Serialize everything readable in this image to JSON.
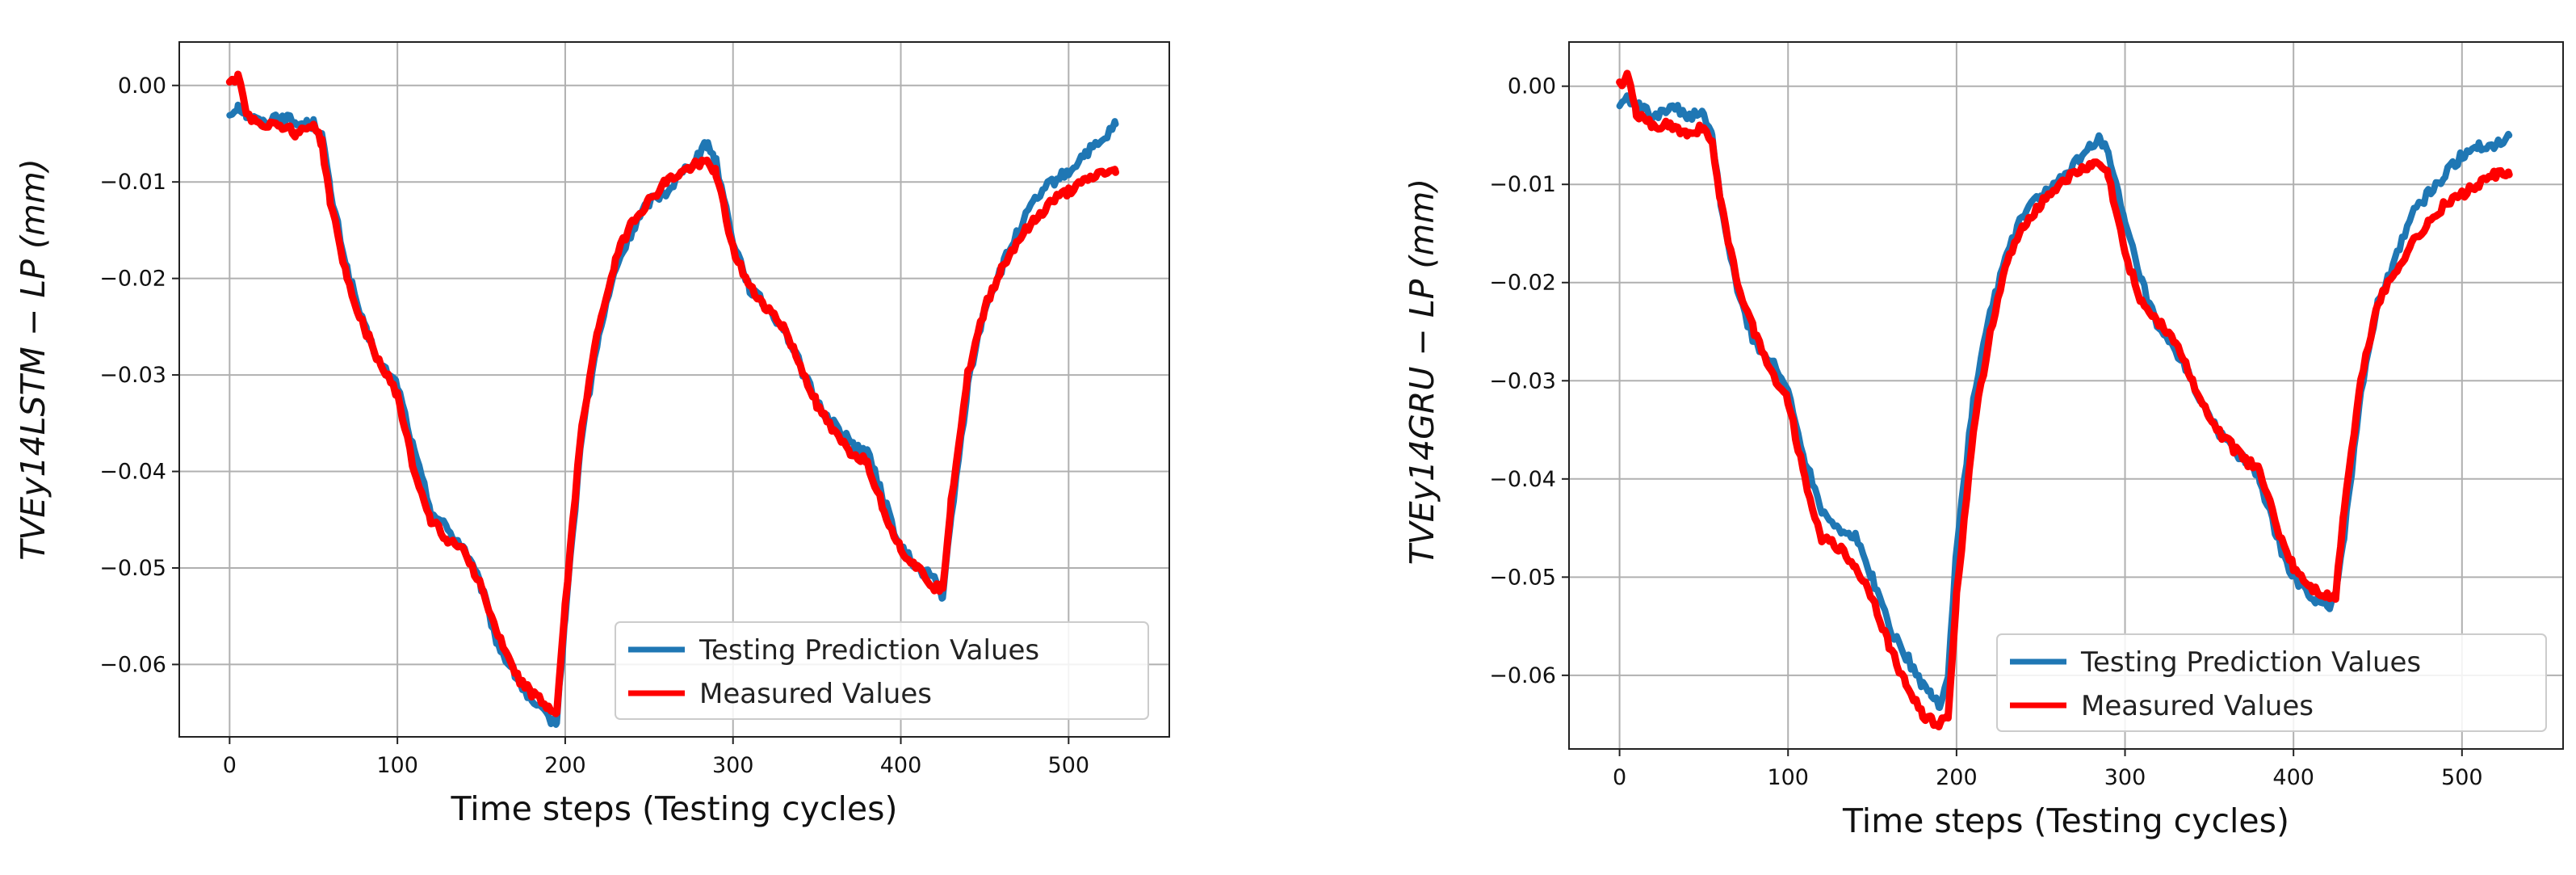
{
  "chart_data": [
    {
      "type": "line",
      "ylabel": "TVEy14LSTM − LP (mm)",
      "xlabel": "Time steps (Testing cycles)",
      "xlim": [
        -30,
        560
      ],
      "ylim": [
        -0.0675,
        0.0045
      ],
      "x_ticks": [
        0,
        100,
        200,
        300,
        400,
        500
      ],
      "x_tick_labels": [
        "0",
        "100",
        "200",
        "300",
        "400",
        "500"
      ],
      "y_ticks": [
        0.0,
        -0.01,
        -0.02,
        -0.03,
        -0.04,
        -0.05,
        -0.06
      ],
      "y_tick_labels": [
        "0.00",
        "−0.01",
        "−0.02",
        "−0.03",
        "−0.04",
        "−0.05",
        "−0.06"
      ],
      "grid": true,
      "legend_position": "lower-right",
      "series": [
        {
          "name": "Testing Prediction Values",
          "color": "#1f77b4",
          "x": [
            0,
            5,
            10,
            20,
            30,
            40,
            50,
            55,
            60,
            70,
            80,
            90,
            100,
            110,
            120,
            130,
            140,
            150,
            160,
            170,
            180,
            190,
            195,
            200,
            210,
            220,
            230,
            240,
            250,
            260,
            270,
            280,
            285,
            290,
            300,
            310,
            320,
            330,
            340,
            350,
            360,
            370,
            380,
            390,
            400,
            410,
            420,
            425,
            430,
            440,
            450,
            460,
            470,
            480,
            490,
            500,
            510,
            520,
            528
          ],
          "values": [
            -0.003,
            -0.002,
            -0.003,
            -0.004,
            -0.003,
            -0.004,
            -0.004,
            -0.005,
            -0.011,
            -0.019,
            -0.025,
            -0.029,
            -0.031,
            -0.038,
            -0.044,
            -0.046,
            -0.048,
            -0.052,
            -0.058,
            -0.061,
            -0.064,
            -0.0655,
            -0.066,
            -0.055,
            -0.036,
            -0.026,
            -0.019,
            -0.015,
            -0.012,
            -0.011,
            -0.009,
            -0.007,
            -0.006,
            -0.008,
            -0.016,
            -0.021,
            -0.023,
            -0.025,
            -0.029,
            -0.033,
            -0.035,
            -0.037,
            -0.038,
            -0.043,
            -0.048,
            -0.05,
            -0.051,
            -0.053,
            -0.045,
            -0.031,
            -0.023,
            -0.019,
            -0.015,
            -0.012,
            -0.01,
            -0.009,
            -0.007,
            -0.006,
            -0.004
          ]
        },
        {
          "name": "Measured Values",
          "color": "#ff0000",
          "x": [
            0,
            5,
            10,
            20,
            30,
            40,
            50,
            55,
            60,
            70,
            80,
            90,
            100,
            110,
            120,
            130,
            140,
            150,
            160,
            170,
            180,
            190,
            195,
            200,
            210,
            220,
            230,
            240,
            250,
            260,
            270,
            280,
            285,
            290,
            300,
            310,
            320,
            330,
            340,
            350,
            360,
            370,
            380,
            390,
            400,
            410,
            420,
            425,
            430,
            440,
            450,
            460,
            470,
            480,
            490,
            500,
            510,
            520,
            528
          ],
          "values": [
            0.0,
            0.001,
            -0.003,
            -0.004,
            -0.004,
            -0.005,
            -0.004,
            -0.006,
            -0.012,
            -0.02,
            -0.025,
            -0.029,
            -0.032,
            -0.04,
            -0.045,
            -0.047,
            -0.048,
            -0.052,
            -0.057,
            -0.061,
            -0.063,
            -0.0645,
            -0.065,
            -0.054,
            -0.035,
            -0.025,
            -0.018,
            -0.014,
            -0.012,
            -0.01,
            -0.009,
            -0.008,
            -0.008,
            -0.009,
            -0.017,
            -0.021,
            -0.023,
            -0.025,
            -0.029,
            -0.033,
            -0.036,
            -0.038,
            -0.039,
            -0.044,
            -0.048,
            -0.05,
            -0.052,
            -0.052,
            -0.043,
            -0.03,
            -0.023,
            -0.019,
            -0.016,
            -0.014,
            -0.012,
            -0.011,
            -0.01,
            -0.009,
            -0.009
          ]
        }
      ]
    },
    {
      "type": "line",
      "ylabel": "TVEy14GRU − LP (mm)",
      "xlabel": "Time steps (Testing cycles)",
      "xlim": [
        -30,
        560
      ],
      "ylim": [
        -0.0675,
        0.0045
      ],
      "x_ticks": [
        0,
        100,
        200,
        300,
        400,
        500
      ],
      "x_tick_labels": [
        "0",
        "100",
        "200",
        "300",
        "400",
        "500"
      ],
      "y_ticks": [
        0.0,
        -0.01,
        -0.02,
        -0.03,
        -0.04,
        -0.05,
        -0.06
      ],
      "y_tick_labels": [
        "0.00",
        "−0.01",
        "−0.02",
        "−0.03",
        "−0.04",
        "−0.05",
        "−0.06"
      ],
      "grid": true,
      "legend_position": "lower-right",
      "series": [
        {
          "name": "Testing Prediction Values",
          "color": "#1f77b4",
          "x": [
            0,
            5,
            10,
            20,
            30,
            40,
            50,
            55,
            60,
            70,
            80,
            90,
            100,
            110,
            120,
            130,
            140,
            150,
            160,
            170,
            180,
            185,
            190,
            195,
            200,
            210,
            220,
            230,
            240,
            250,
            260,
            270,
            280,
            285,
            290,
            300,
            310,
            320,
            330,
            340,
            350,
            360,
            370,
            380,
            390,
            400,
            410,
            420,
            425,
            430,
            440,
            450,
            460,
            470,
            480,
            490,
            500,
            510,
            520,
            528
          ],
          "values": [
            -0.002,
            -0.001,
            -0.002,
            -0.003,
            -0.002,
            -0.003,
            -0.003,
            -0.005,
            -0.012,
            -0.021,
            -0.026,
            -0.028,
            -0.031,
            -0.038,
            -0.043,
            -0.045,
            -0.046,
            -0.05,
            -0.055,
            -0.058,
            -0.061,
            -0.062,
            -0.063,
            -0.06,
            -0.047,
            -0.032,
            -0.023,
            -0.017,
            -0.013,
            -0.011,
            -0.01,
            -0.008,
            -0.006,
            -0.005,
            -0.007,
            -0.014,
            -0.02,
            -0.025,
            -0.027,
            -0.03,
            -0.034,
            -0.036,
            -0.038,
            -0.04,
            -0.046,
            -0.05,
            -0.052,
            -0.053,
            -0.052,
            -0.046,
            -0.031,
            -0.022,
            -0.018,
            -0.013,
            -0.011,
            -0.009,
            -0.007,
            -0.006,
            -0.006,
            -0.005
          ]
        },
        {
          "name": "Measured Values",
          "color": "#ff0000",
          "x": [
            0,
            5,
            10,
            20,
            30,
            40,
            50,
            55,
            60,
            70,
            80,
            90,
            100,
            110,
            120,
            130,
            140,
            150,
            160,
            170,
            180,
            185,
            190,
            195,
            200,
            210,
            220,
            230,
            240,
            250,
            260,
            270,
            280,
            285,
            290,
            300,
            310,
            320,
            330,
            340,
            350,
            360,
            370,
            380,
            390,
            400,
            410,
            420,
            425,
            430,
            440,
            450,
            460,
            470,
            480,
            490,
            500,
            510,
            520,
            528
          ],
          "values": [
            0.0,
            0.001,
            -0.003,
            -0.004,
            -0.004,
            -0.005,
            -0.004,
            -0.006,
            -0.012,
            -0.02,
            -0.025,
            -0.029,
            -0.032,
            -0.04,
            -0.046,
            -0.047,
            -0.049,
            -0.052,
            -0.057,
            -0.061,
            -0.064,
            -0.0645,
            -0.065,
            -0.064,
            -0.052,
            -0.035,
            -0.025,
            -0.018,
            -0.014,
            -0.012,
            -0.01,
            -0.009,
            -0.008,
            -0.008,
            -0.009,
            -0.017,
            -0.022,
            -0.024,
            -0.026,
            -0.03,
            -0.034,
            -0.036,
            -0.038,
            -0.039,
            -0.045,
            -0.049,
            -0.051,
            -0.052,
            -0.052,
            -0.043,
            -0.03,
            -0.022,
            -0.019,
            -0.016,
            -0.014,
            -0.012,
            -0.011,
            -0.01,
            -0.009,
            -0.009
          ]
        }
      ]
    }
  ]
}
